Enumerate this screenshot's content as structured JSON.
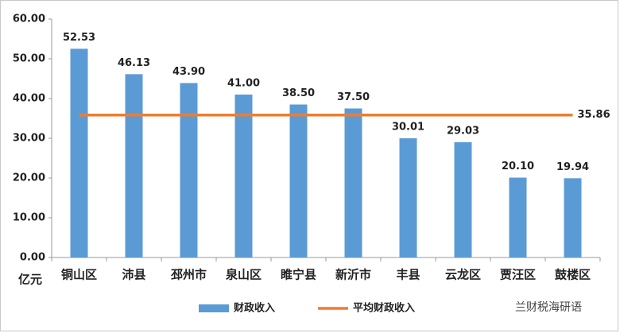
{
  "chart_data": {
    "type": "bar",
    "y_unit": "亿元",
    "categories": [
      "铜山区",
      "沛县",
      "邳州市",
      "泉山区",
      "睢宁县",
      "新沂市",
      "丰县",
      "云龙区",
      "贾汪区",
      "鼓楼区"
    ],
    "series": [
      {
        "name": "财政收入",
        "color": "#5b9bd5",
        "values": [
          52.53,
          46.13,
          43.9,
          41.0,
          38.5,
          37.5,
          30.01,
          29.03,
          20.1,
          19.94
        ],
        "value_labels": [
          "52.53",
          "46.13",
          "43.90",
          "41.00",
          "38.50",
          "37.50",
          "30.01",
          "29.03",
          "20.10",
          "19.94"
        ]
      }
    ],
    "average": {
      "name": "平均财政收入",
      "color": "#ed7d31",
      "value": 35.86,
      "value_label": "35.86"
    },
    "ylim": [
      0,
      60
    ],
    "yticks": [
      {
        "value": 0,
        "label": "0.00"
      },
      {
        "value": 10,
        "label": "10.00"
      },
      {
        "value": 20,
        "label": "20.00"
      },
      {
        "value": 30,
        "label": "30.00"
      },
      {
        "value": 40,
        "label": "40.00"
      },
      {
        "value": 50,
        "label": "50.00"
      },
      {
        "value": 60,
        "label": "60.00"
      }
    ],
    "legend": "bottom",
    "watermark": "兰财税海研语"
  }
}
